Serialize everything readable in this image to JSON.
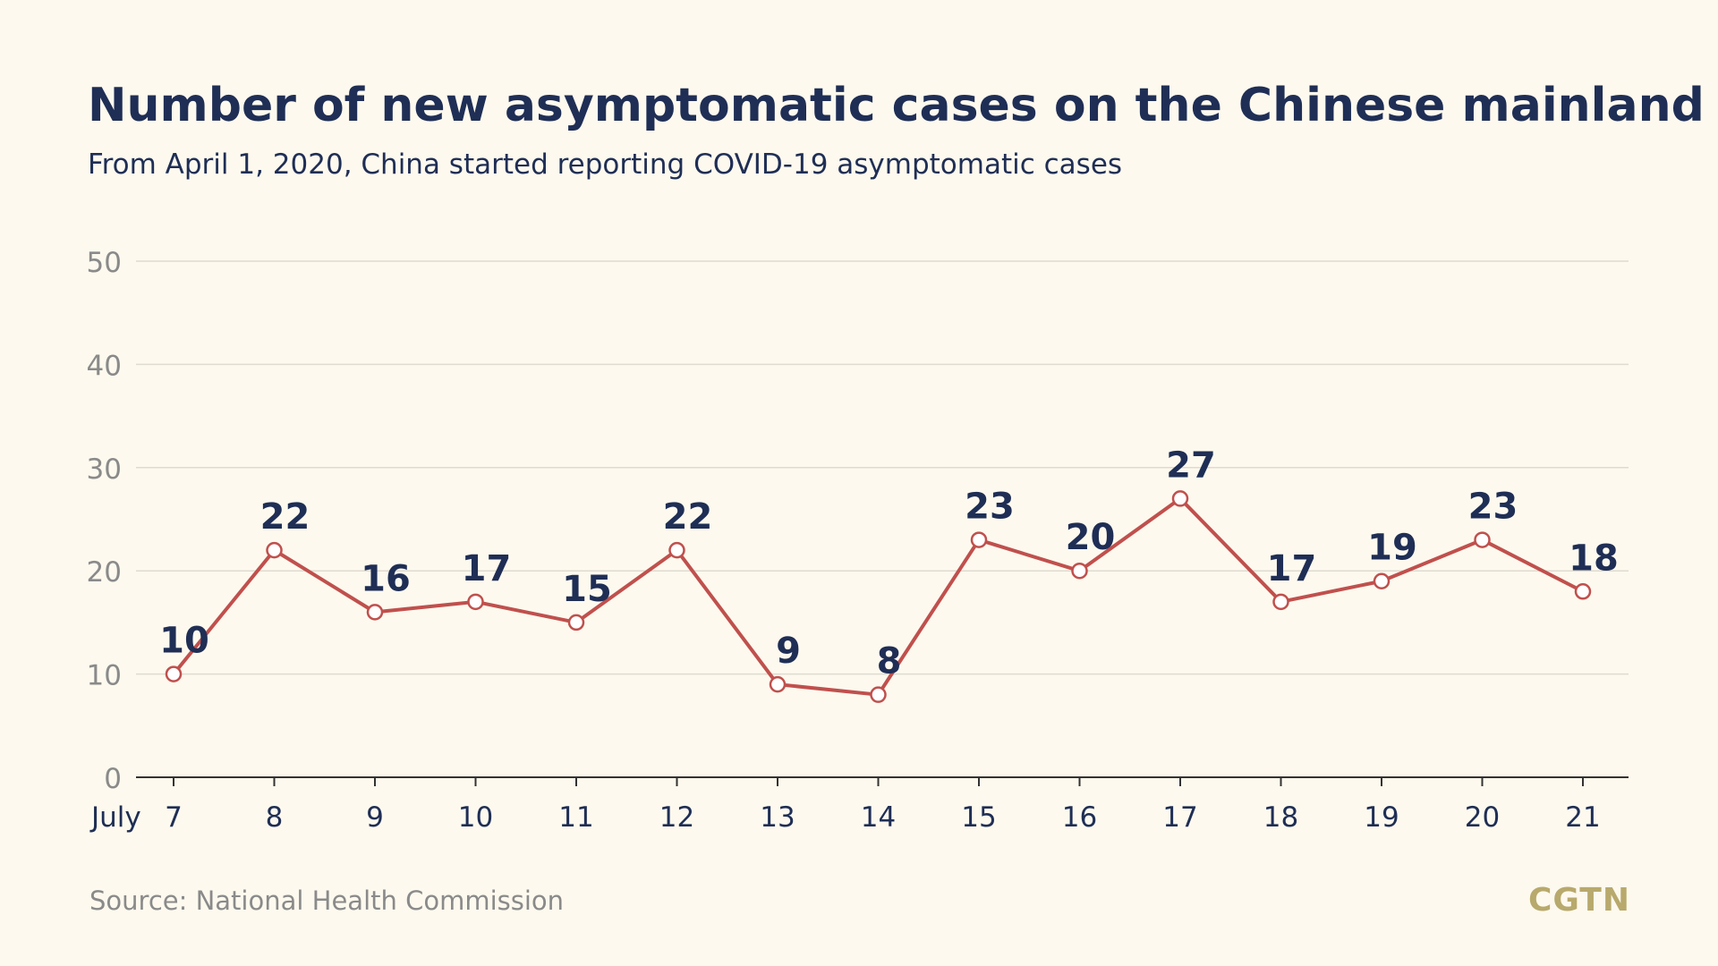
{
  "title": "Number of new asymptomatic cases on the Chinese mainland",
  "subtitle": "From April 1, 2020, China started reporting COVID-19 asymptomatic cases",
  "source": "Source: National Health Commission",
  "logo": "CGTN",
  "colors": {
    "line": "#c0504d",
    "title": "#1f2e55",
    "tick": "#8a8a8a",
    "grid": "#dedbd0",
    "background": "#fdf9ee"
  },
  "chart_data": {
    "type": "line",
    "x_prefix": "July",
    "categories": [
      "7",
      "8",
      "9",
      "10",
      "11",
      "12",
      "13",
      "14",
      "15",
      "16",
      "17",
      "18",
      "19",
      "20",
      "21"
    ],
    "values": [
      10,
      22,
      16,
      17,
      15,
      22,
      9,
      8,
      23,
      20,
      27,
      17,
      19,
      23,
      18
    ],
    "ylim": [
      0,
      50
    ],
    "yticks": [
      0,
      10,
      20,
      30,
      40,
      50
    ],
    "grid": true,
    "legend": "none"
  }
}
